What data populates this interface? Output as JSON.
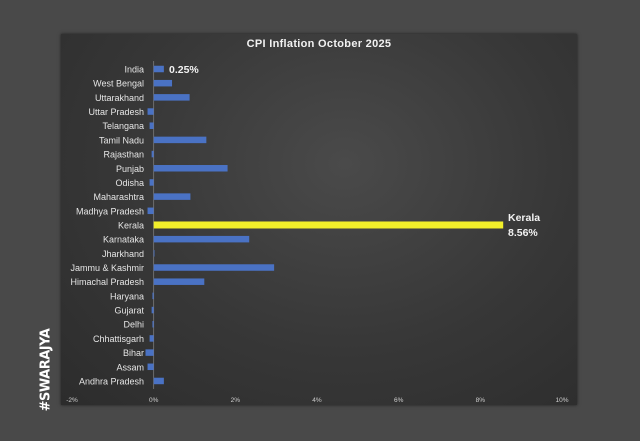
{
  "brand": "#SWARAJYA",
  "colors": {
    "bar": "#4a72c4",
    "highlight": "#f2ef2a",
    "label": "#e6e6e6"
  },
  "chart_data": {
    "type": "bar",
    "orientation": "horizontal",
    "title": "CPI Inflation October 2025",
    "categories": [
      "India",
      "West Bengal",
      "Uttarakhand",
      "Uttar Pradesh",
      "Telangana",
      "Tamil Nadu",
      "Rajasthan",
      "Punjab",
      "Odisha",
      "Maharashtra",
      "Madhya Pradesh",
      "Kerala",
      "Karnataka",
      "Jharkhand",
      "Jammu & Kashmir",
      "Himachal Pradesh",
      "Haryana",
      "Gujarat",
      "Delhi",
      "Chhattisgarh",
      "Bihar",
      "Assam",
      "Andhra Pradesh"
    ],
    "values": [
      0.25,
      0.45,
      0.88,
      -0.15,
      -0.1,
      1.29,
      -0.05,
      1.81,
      -0.1,
      0.9,
      -0.15,
      8.56,
      2.34,
      0.0,
      2.95,
      1.24,
      -0.03,
      -0.05,
      -0.03,
      -0.1,
      -0.2,
      -0.15,
      0.25
    ],
    "highlight": "Kerala",
    "data_labels": [
      {
        "category": "India",
        "text": "0.25%"
      },
      {
        "category": "Kerala",
        "text": "Kerala"
      },
      {
        "category": "Kerala",
        "text": "8.56%"
      }
    ],
    "xlim": [
      -2,
      10
    ],
    "xticks": [
      "-2%",
      "0%",
      "2%",
      "4%",
      "6%",
      "8%",
      "10%"
    ],
    "grid": false,
    "legend": "none"
  }
}
